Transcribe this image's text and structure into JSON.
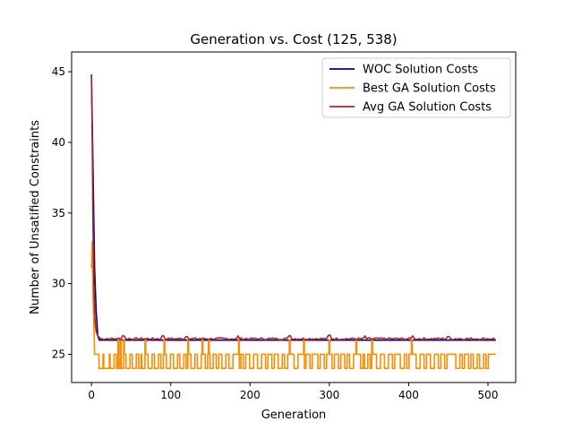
{
  "chart_data": {
    "type": "line",
    "title": "Generation vs. Cost (125, 538)",
    "xlabel": "Generation",
    "ylabel": "Number of Unsatified Constraints",
    "xlim": [
      -25,
      535
    ],
    "ylim": [
      23,
      46.4
    ],
    "xticks": [
      0,
      100,
      200,
      300,
      400,
      500
    ],
    "yticks": [
      25,
      30,
      35,
      40,
      45
    ],
    "x_end": 510,
    "legend_position": "upper right",
    "grid": false,
    "series": [
      {
        "name": "WOC Solution Costs",
        "color": "#00008b",
        "points": [
          [
            0,
            44.8
          ],
          [
            2,
            38
          ],
          [
            4,
            31
          ],
          [
            6,
            28
          ],
          [
            8,
            26.3
          ],
          [
            10,
            26
          ],
          [
            510,
            26
          ]
        ]
      },
      {
        "name": "Best GA Solution Costs",
        "color": "#ff8c00",
        "start": [
          [
            0,
            31.1
          ],
          [
            1,
            33
          ],
          [
            2,
            29
          ],
          [
            3,
            27
          ],
          [
            4,
            25
          ]
        ],
        "baseline": 25,
        "dips_to": 24,
        "up_to": 26,
        "dips": [
          [
            10,
            14
          ],
          [
            16,
            22
          ],
          [
            24,
            28
          ],
          [
            32,
            36
          ],
          [
            38,
            40
          ],
          [
            44,
            48
          ],
          [
            52,
            56
          ],
          [
            60,
            62
          ],
          [
            64,
            67
          ],
          [
            72,
            76
          ],
          [
            80,
            84
          ],
          [
            88,
            90
          ],
          [
            95,
            99
          ],
          [
            104,
            108
          ],
          [
            112,
            116
          ],
          [
            120,
            121
          ],
          [
            126,
            130
          ],
          [
            134,
            138
          ],
          [
            144,
            146
          ],
          [
            150,
            153
          ],
          [
            158,
            160
          ],
          [
            165,
            169
          ],
          [
            174,
            178
          ],
          [
            186,
            188
          ],
          [
            192,
            194
          ],
          [
            200,
            204
          ],
          [
            210,
            214
          ],
          [
            220,
            222
          ],
          [
            228,
            230
          ],
          [
            236,
            240
          ],
          [
            244,
            247
          ],
          [
            256,
            260
          ],
          [
            268,
            270
          ],
          [
            276,
            278
          ],
          [
            286,
            288
          ],
          [
            294,
            296
          ],
          [
            304,
            306
          ],
          [
            312,
            314
          ],
          [
            320,
            322
          ],
          [
            326,
            330
          ],
          [
            340,
            342
          ],
          [
            345,
            348
          ],
          [
            352,
            354
          ],
          [
            360,
            364
          ],
          [
            370,
            374
          ],
          [
            380,
            382
          ],
          [
            390,
            394
          ],
          [
            398,
            400
          ],
          [
            410,
            414
          ],
          [
            420,
            422
          ],
          [
            428,
            432
          ],
          [
            438,
            440
          ],
          [
            446,
            448
          ],
          [
            460,
            464
          ],
          [
            468,
            470
          ],
          [
            476,
            478
          ],
          [
            482,
            486
          ],
          [
            490,
            494
          ],
          [
            498,
            500
          ]
        ],
        "ups": [
          34,
          37,
          41,
          68,
          92,
          122,
          140,
          148,
          186,
          250,
          268,
          300,
          334,
          354,
          404
        ]
      },
      {
        "name": "Avg GA Solution Costs",
        "color": "#b22222",
        "start": [
          [
            0,
            44.8
          ],
          [
            1,
            40
          ],
          [
            2,
            34
          ],
          [
            3,
            30
          ],
          [
            4,
            28
          ],
          [
            5,
            27
          ],
          [
            6,
            26.6
          ],
          [
            8,
            26.3
          ],
          [
            10,
            26.2
          ]
        ],
        "level": 26.1,
        "noise": 0.07,
        "spikes": [
          [
            40,
            26.3
          ],
          [
            90,
            26.3
          ],
          [
            120,
            26.25
          ],
          [
            185,
            26.3
          ],
          [
            250,
            26.3
          ],
          [
            300,
            26.35
          ],
          [
            345,
            26.3
          ],
          [
            405,
            26.3
          ],
          [
            450,
            26.25
          ]
        ]
      }
    ]
  }
}
